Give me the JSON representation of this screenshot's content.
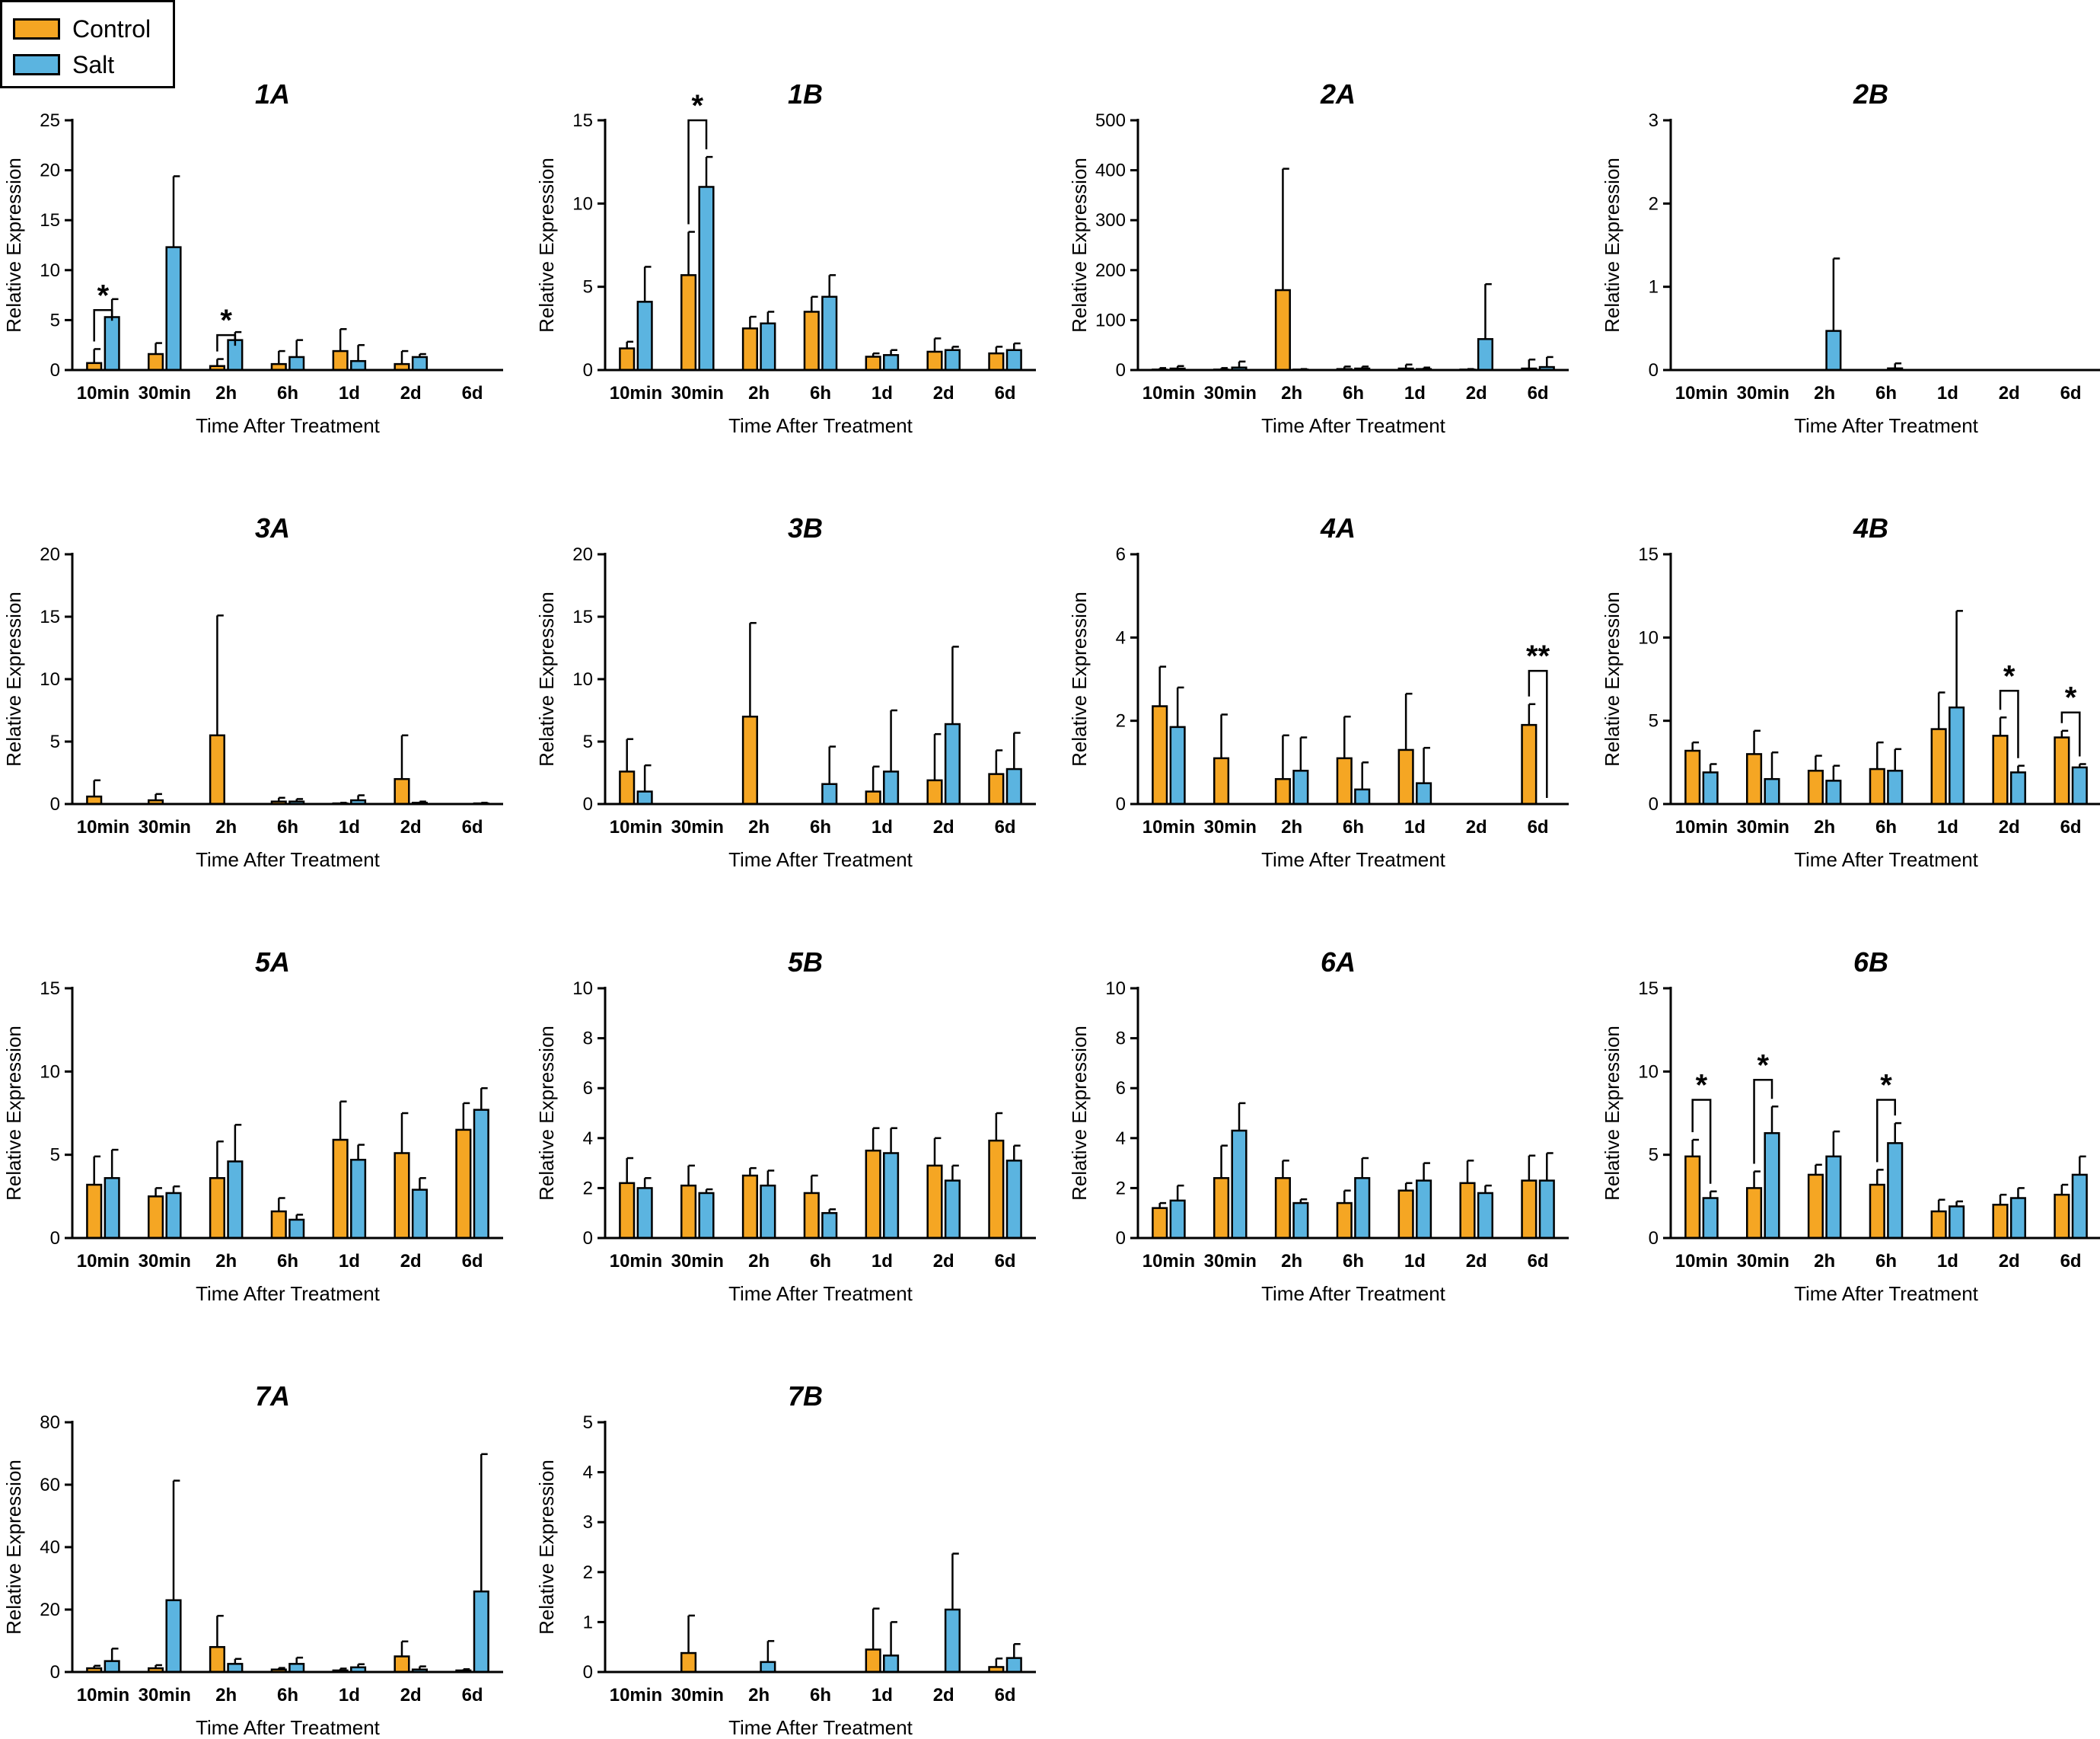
{
  "legend": {
    "items": [
      {
        "label": "Control",
        "color": "#F5A623"
      },
      {
        "label": "Salt",
        "color": "#5BB4E0"
      }
    ]
  },
  "colors": {
    "control": "#F5A623",
    "salt": "#5BB4E0",
    "axis": "#000000"
  },
  "chart_data": [
    {
      "type": "bar",
      "title": "1A",
      "ylabel": "Relative Expression",
      "xlabel": "Time After Treatment",
      "categories": [
        "10min",
        "30min",
        "2h",
        "6h",
        "1d",
        "2d",
        "6d"
      ],
      "ylim": [
        0,
        25
      ],
      "yticks": [
        0,
        5,
        10,
        15,
        20,
        25
      ],
      "series": [
        {
          "name": "Control",
          "values": [
            0.7,
            1.6,
            0.4,
            0.6,
            1.9,
            0.6,
            null
          ],
          "errors": [
            1.4,
            1.1,
            0.7,
            1.3,
            2.2,
            1.3,
            null
          ]
        },
        {
          "name": "Salt",
          "values": [
            5.3,
            12.3,
            3.0,
            1.3,
            0.9,
            1.3,
            null
          ],
          "errors": [
            1.8,
            7.1,
            0.8,
            1.7,
            1.6,
            0.3,
            null
          ]
        }
      ],
      "annotations": [
        {
          "category": "10min",
          "label": "*",
          "level": 6.0
        },
        {
          "category": "2h",
          "label": "*",
          "level": 3.5
        }
      ]
    },
    {
      "type": "bar",
      "title": "1B",
      "ylabel": "Relative Expression",
      "xlabel": "Time After Treatment",
      "categories": [
        "10min",
        "30min",
        "2h",
        "6h",
        "1d",
        "2d",
        "6d"
      ],
      "ylim": [
        0,
        15
      ],
      "yticks": [
        0,
        5,
        10,
        15
      ],
      "series": [
        {
          "name": "Control",
          "values": [
            1.3,
            5.7,
            2.5,
            3.5,
            0.8,
            1.1,
            1.0
          ],
          "errors": [
            0.4,
            2.6,
            0.7,
            0.9,
            0.2,
            0.8,
            0.4
          ]
        },
        {
          "name": "Salt",
          "values": [
            4.1,
            11.0,
            2.8,
            4.4,
            0.9,
            1.2,
            1.2
          ],
          "errors": [
            2.1,
            1.8,
            0.7,
            1.3,
            0.3,
            0.2,
            0.4
          ]
        }
      ],
      "annotations": [
        {
          "category": "30min",
          "label": "*",
          "level": 15.0
        }
      ]
    },
    {
      "type": "bar",
      "title": "2A",
      "ylabel": "Relative Expression",
      "xlabel": "Time After Treatment",
      "categories": [
        "10min",
        "30min",
        "2h",
        "6h",
        "1d",
        "2d",
        "6d"
      ],
      "ylim": [
        0,
        500
      ],
      "yticks": [
        0,
        100,
        200,
        300,
        400,
        500
      ],
      "series": [
        {
          "name": "Control",
          "values": [
            1,
            1,
            160,
            2,
            3,
            1,
            3
          ],
          "errors": [
            3,
            3,
            243,
            5,
            8,
            1,
            18
          ]
        },
        {
          "name": "Salt",
          "values": [
            3,
            5,
            1,
            3,
            2,
            62,
            6
          ],
          "errors": [
            5,
            12,
            1,
            4,
            3,
            110,
            20
          ]
        }
      ],
      "annotations": []
    },
    {
      "type": "bar",
      "title": "2B",
      "ylabel": "Relative Expression",
      "xlabel": "Time After Treatment",
      "categories": [
        "10min",
        "30min",
        "2h",
        "6h",
        "1d",
        "2d",
        "6d"
      ],
      "ylim": [
        0,
        3
      ],
      "yticks": [
        0,
        1,
        2,
        3
      ],
      "series": [
        {
          "name": "Control",
          "values": [
            null,
            null,
            null,
            null,
            null,
            null,
            null
          ],
          "errors": [
            null,
            null,
            null,
            null,
            null,
            null,
            null
          ]
        },
        {
          "name": "Salt",
          "values": [
            null,
            null,
            0.47,
            0.02,
            null,
            null,
            null
          ],
          "errors": [
            null,
            null,
            0.87,
            0.06,
            null,
            null,
            null
          ]
        }
      ],
      "annotations": []
    },
    {
      "type": "bar",
      "title": "3A",
      "ylabel": "Relative Expression",
      "xlabel": "Time After Treatment",
      "categories": [
        "10min",
        "30min",
        "2h",
        "6h",
        "1d",
        "2d",
        "6d"
      ],
      "ylim": [
        0,
        20
      ],
      "yticks": [
        0,
        5,
        10,
        15,
        20
      ],
      "series": [
        {
          "name": "Control",
          "values": [
            0.6,
            0.3,
            5.5,
            0.2,
            0.05,
            2.0,
            null
          ],
          "errors": [
            1.3,
            0.5,
            9.6,
            0.3,
            0.05,
            3.5,
            null
          ]
        },
        {
          "name": "Salt",
          "values": [
            null,
            null,
            null,
            0.2,
            0.3,
            0.1,
            0.05
          ],
          "errors": [
            null,
            null,
            null,
            0.2,
            0.4,
            0.1,
            0.05
          ]
        }
      ],
      "annotations": []
    },
    {
      "type": "bar",
      "title": "3B",
      "ylabel": "Relative Expression",
      "xlabel": "Time After Treatment",
      "categories": [
        "10min",
        "30min",
        "2h",
        "6h",
        "1d",
        "2d",
        "6d"
      ],
      "ylim": [
        0,
        20
      ],
      "yticks": [
        0,
        5,
        10,
        15,
        20
      ],
      "series": [
        {
          "name": "Control",
          "values": [
            2.6,
            null,
            7.0,
            null,
            1.0,
            1.9,
            2.4
          ],
          "errors": [
            2.6,
            null,
            7.5,
            null,
            2.0,
            3.7,
            1.9
          ]
        },
        {
          "name": "Salt",
          "values": [
            1.0,
            null,
            null,
            1.6,
            2.6,
            6.4,
            2.8
          ],
          "errors": [
            2.1,
            null,
            null,
            3.0,
            4.9,
            6.2,
            2.9
          ]
        }
      ],
      "annotations": []
    },
    {
      "type": "bar",
      "title": "4A",
      "ylabel": "Relative Expression",
      "xlabel": "Time After Treatment",
      "categories": [
        "10min",
        "30min",
        "2h",
        "6h",
        "1d",
        "2d",
        "6d"
      ],
      "ylim": [
        0,
        6
      ],
      "yticks": [
        0,
        2,
        4,
        6
      ],
      "series": [
        {
          "name": "Control",
          "values": [
            2.35,
            1.1,
            0.6,
            1.1,
            1.3,
            null,
            1.9
          ],
          "errors": [
            0.95,
            1.05,
            1.05,
            1.0,
            1.35,
            null,
            0.5
          ]
        },
        {
          "name": "Salt",
          "values": [
            1.85,
            null,
            0.8,
            0.35,
            0.5,
            null,
            null
          ],
          "errors": [
            0.95,
            null,
            0.8,
            0.65,
            0.85,
            null,
            null
          ]
        }
      ],
      "annotations": [
        {
          "category": "6d",
          "label": "**",
          "level": 3.2
        }
      ]
    },
    {
      "type": "bar",
      "title": "4B",
      "ylabel": "Relative Expression",
      "xlabel": "Time After Treatment",
      "categories": [
        "10min",
        "30min",
        "2h",
        "6h",
        "1d",
        "2d",
        "6d"
      ],
      "ylim": [
        0,
        15
      ],
      "yticks": [
        0,
        5,
        10,
        15
      ],
      "series": [
        {
          "name": "Control",
          "values": [
            3.2,
            3.0,
            2.0,
            2.1,
            4.5,
            4.1,
            4.0
          ],
          "errors": [
            0.5,
            1.4,
            0.9,
            1.6,
            2.2,
            1.1,
            0.4
          ]
        },
        {
          "name": "Salt",
          "values": [
            1.9,
            1.5,
            1.4,
            2.0,
            5.8,
            1.9,
            2.2
          ],
          "errors": [
            0.5,
            1.6,
            0.9,
            1.3,
            5.8,
            0.4,
            0.2
          ]
        }
      ],
      "annotations": [
        {
          "category": "2d",
          "label": "*",
          "level": 6.8
        },
        {
          "category": "6d",
          "label": "*",
          "level": 5.5
        }
      ]
    },
    {
      "type": "bar",
      "title": "5A",
      "ylabel": "Relative Expression",
      "xlabel": "Time After Treatment",
      "categories": [
        "10min",
        "30min",
        "2h",
        "6h",
        "1d",
        "2d",
        "6d"
      ],
      "ylim": [
        0,
        15
      ],
      "yticks": [
        0,
        5,
        10,
        15
      ],
      "series": [
        {
          "name": "Control",
          "values": [
            3.2,
            2.5,
            3.6,
            1.6,
            5.9,
            5.1,
            6.5
          ],
          "errors": [
            1.7,
            0.5,
            2.2,
            0.8,
            2.3,
            2.4,
            1.6
          ]
        },
        {
          "name": "Salt",
          "values": [
            3.6,
            2.7,
            4.6,
            1.1,
            4.7,
            2.9,
            7.7
          ],
          "errors": [
            1.7,
            0.4,
            2.2,
            0.3,
            0.9,
            0.7,
            1.3
          ]
        }
      ],
      "annotations": []
    },
    {
      "type": "bar",
      "title": "5B",
      "ylabel": "Relative Expression",
      "xlabel": "Time After Treatment",
      "categories": [
        "10min",
        "30min",
        "2h",
        "6h",
        "1d",
        "2d",
        "6d"
      ],
      "ylim": [
        0,
        10
      ],
      "yticks": [
        0,
        2,
        4,
        6,
        8,
        10
      ],
      "series": [
        {
          "name": "Control",
          "values": [
            2.2,
            2.1,
            2.5,
            1.8,
            3.5,
            2.9,
            3.9
          ],
          "errors": [
            1.0,
            0.8,
            0.3,
            0.7,
            0.9,
            1.1,
            1.1
          ]
        },
        {
          "name": "Salt",
          "values": [
            2.0,
            1.8,
            2.1,
            1.0,
            3.4,
            2.3,
            3.1
          ],
          "errors": [
            0.4,
            0.15,
            0.6,
            0.15,
            1.0,
            0.6,
            0.6
          ]
        }
      ],
      "annotations": []
    },
    {
      "type": "bar",
      "title": "6A",
      "ylabel": "Relative Expression",
      "xlabel": "Time After Treatment",
      "categories": [
        "10min",
        "30min",
        "2h",
        "6h",
        "1d",
        "2d",
        "6d"
      ],
      "ylim": [
        0,
        10
      ],
      "yticks": [
        0,
        2,
        4,
        6,
        8,
        10
      ],
      "series": [
        {
          "name": "Control",
          "values": [
            1.2,
            2.4,
            2.4,
            1.4,
            1.9,
            2.2,
            2.3
          ],
          "errors": [
            0.2,
            1.3,
            0.7,
            0.5,
            0.3,
            0.9,
            1.0
          ]
        },
        {
          "name": "Salt",
          "values": [
            1.5,
            4.3,
            1.4,
            2.4,
            2.3,
            1.8,
            2.3
          ],
          "errors": [
            0.6,
            1.1,
            0.15,
            0.8,
            0.7,
            0.3,
            1.1
          ]
        }
      ],
      "annotations": []
    },
    {
      "type": "bar",
      "title": "6B",
      "ylabel": "Relative Expression",
      "xlabel": "Time After Treatment",
      "categories": [
        "10min",
        "30min",
        "2h",
        "6h",
        "1d",
        "2d",
        "6d"
      ],
      "ylim": [
        0,
        15
      ],
      "yticks": [
        0,
        5,
        10,
        15
      ],
      "series": [
        {
          "name": "Control",
          "values": [
            4.9,
            3.0,
            3.8,
            3.2,
            1.6,
            2.0,
            2.6
          ],
          "errors": [
            1.0,
            1.0,
            0.6,
            0.9,
            0.7,
            0.6,
            0.6
          ]
        },
        {
          "name": "Salt",
          "values": [
            2.4,
            6.3,
            4.9,
            5.7,
            1.9,
            2.4,
            3.8
          ],
          "errors": [
            0.4,
            1.6,
            1.5,
            1.2,
            0.3,
            0.6,
            1.1
          ]
        }
      ],
      "annotations": [
        {
          "category": "10min",
          "label": "*",
          "level": 8.3
        },
        {
          "category": "30min",
          "label": "*",
          "level": 9.5
        },
        {
          "category": "6h",
          "label": "*",
          "level": 8.3
        }
      ]
    },
    {
      "type": "bar",
      "title": "7A",
      "ylabel": "Relative Expression",
      "xlabel": "Time After Treatment",
      "categories": [
        "10min",
        "30min",
        "2h",
        "6h",
        "1d",
        "2d",
        "6d"
      ],
      "ylim": [
        0,
        80
      ],
      "yticks": [
        0,
        20,
        40,
        60,
        80
      ],
      "series": [
        {
          "name": "Control",
          "values": [
            1.2,
            1.2,
            8.0,
            0.8,
            0.5,
            5.0,
            0.5
          ],
          "errors": [
            0.8,
            1.0,
            10.0,
            0.5,
            0.6,
            4.8,
            0.4
          ]
        },
        {
          "name": "Salt",
          "values": [
            3.5,
            23.0,
            2.6,
            2.6,
            1.5,
            0.8,
            25.8
          ],
          "errors": [
            4.0,
            38.3,
            1.6,
            2.0,
            1.0,
            1.0,
            44.0
          ]
        }
      ],
      "annotations": []
    },
    {
      "type": "bar",
      "title": "7B",
      "ylabel": "Relative Expression",
      "xlabel": "Time After Treatment",
      "categories": [
        "10min",
        "30min",
        "2h",
        "6h",
        "1d",
        "2d",
        "6d"
      ],
      "ylim": [
        0,
        5
      ],
      "yticks": [
        0,
        1,
        2,
        3,
        4,
        5
      ],
      "series": [
        {
          "name": "Control",
          "values": [
            null,
            0.38,
            null,
            null,
            0.45,
            null,
            0.1
          ],
          "errors": [
            null,
            0.75,
            null,
            null,
            0.82,
            null,
            0.17
          ]
        },
        {
          "name": "Salt",
          "values": [
            null,
            null,
            0.2,
            null,
            0.33,
            1.25,
            0.28
          ],
          "errors": [
            null,
            null,
            0.42,
            null,
            0.67,
            1.12,
            0.28
          ]
        }
      ],
      "annotations": []
    }
  ]
}
